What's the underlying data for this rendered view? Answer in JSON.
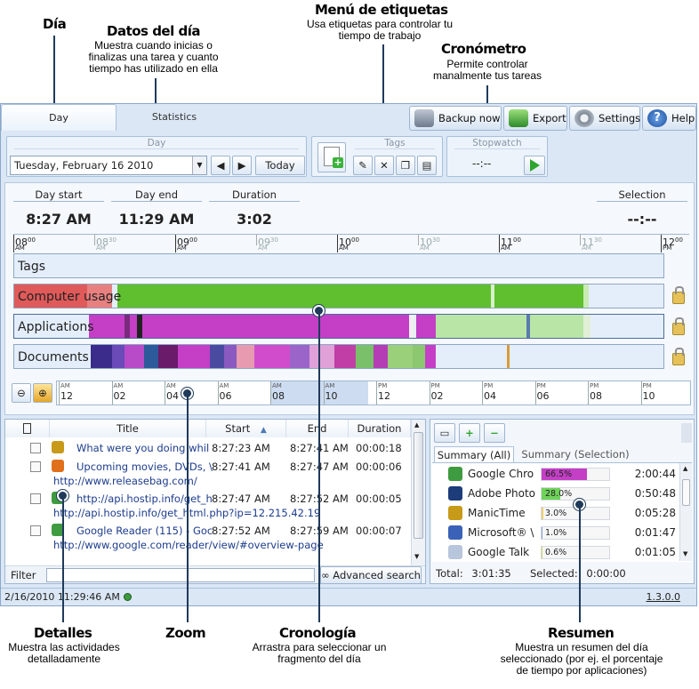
{
  "annotations": {
    "dia": {
      "title": "Día"
    },
    "datos": {
      "title": "Datos del día",
      "desc": "Muestra cuando inicias o finalizas una tarea y cuanto tiempo has utilizado en ella"
    },
    "menu": {
      "title": "Menú de etiquetas",
      "desc": "Usa etiquetas para controlar tu tiempo de trabajo"
    },
    "crono": {
      "title": "Cronómetro",
      "desc": "Permite controlar manalmente tus tareas"
    },
    "detalles": {
      "title": "Detalles",
      "desc": "Muestra las actividades detalladamente"
    },
    "zoom": {
      "title": "Zoom"
    },
    "cronologia": {
      "title": "Cronología",
      "desc": "Arrastra para seleccionar un fragmento del día"
    },
    "resumen": {
      "title": "Resumen",
      "desc": "Muestra un resumen del día seleccionado (por ej. el porcentaje de tiempo por aplicaciones)"
    }
  },
  "tabs": {
    "day": "Day",
    "statistics": "Statistics"
  },
  "toolbar": {
    "backup": "Backup now",
    "export": "Export",
    "settings": "Settings",
    "help": "Help"
  },
  "day_group": {
    "label": "Day",
    "date_value": "Tuesday, February 16 2010",
    "today": "Today"
  },
  "tags_group": {
    "label": "Tags"
  },
  "stopwatch_group": {
    "label": "Stopwatch",
    "value": "--:--"
  },
  "day_summary": {
    "start_label": "Day start",
    "start_value": "8:27 AM",
    "end_label": "Day end",
    "end_value": "11:29 AM",
    "duration_label": "Duration",
    "duration_value": "3:02",
    "selection_label": "Selection",
    "selection_value": "--:--"
  },
  "ruler": {
    "ticks": [
      {
        "h": "08",
        "m": "00",
        "sfx": "AM",
        "major": true
      },
      {
        "h": "08",
        "m": "30",
        "sfx": "AM",
        "major": false
      },
      {
        "h": "09",
        "m": "00",
        "sfx": "AM",
        "major": true
      },
      {
        "h": "09",
        "m": "30",
        "sfx": "AM",
        "major": false
      },
      {
        "h": "10",
        "m": "00",
        "sfx": "AM",
        "major": true
      },
      {
        "h": "10",
        "m": "30",
        "sfx": "AM",
        "major": false
      },
      {
        "h": "11",
        "m": "00",
        "sfx": "AM",
        "major": true
      },
      {
        "h": "11",
        "m": "30",
        "sfx": "AM",
        "major": false
      },
      {
        "h": "12",
        "m": "00",
        "sfx": "PM",
        "major": true
      }
    ]
  },
  "timeline_rows": {
    "tags": "Tags",
    "computer_usage": "Computer usage",
    "applications": "Applications",
    "documents": "Documents"
  },
  "zoom_ruler": {
    "ticks": [
      {
        "sfx": "AM",
        "h": "12"
      },
      {
        "sfx": "AM",
        "h": "02"
      },
      {
        "sfx": "AM",
        "h": "04"
      },
      {
        "sfx": "AM",
        "h": "06"
      },
      {
        "sfx": "AM",
        "h": "08"
      },
      {
        "sfx": "AM",
        "h": "10"
      },
      {
        "sfx": "PM",
        "h": "12"
      },
      {
        "sfx": "PM",
        "h": "02"
      },
      {
        "sfx": "PM",
        "h": "04"
      },
      {
        "sfx": "PM",
        "h": "06"
      },
      {
        "sfx": "PM",
        "h": "08"
      },
      {
        "sfx": "PM",
        "h": "10"
      }
    ]
  },
  "details": {
    "columns": {
      "title": "Title",
      "start": "Start",
      "end": "End",
      "duration": "Duration"
    },
    "rows": [
      {
        "icon": "manictime-icon",
        "color": "#c89a1a",
        "title": "What were you doing whil",
        "start": "8:27:23 AM",
        "end": "8:27:41 AM",
        "duration": "00:00:18",
        "sub": ""
      },
      {
        "icon": "firefox-icon",
        "color": "#e0701c",
        "title": "Upcoming movies, DVDs, \\",
        "start": "8:27:41 AM",
        "end": "8:27:47 AM",
        "duration": "00:00:06",
        "sub": "http://www.releasebag.com/"
      },
      {
        "icon": "chrome-icon",
        "color": "#3f9b3f",
        "title": "http://api.hostip.info/get_h",
        "start": "8:27:47 AM",
        "end": "8:27:52 AM",
        "duration": "00:00:05",
        "sub": "http://api.hostip.info/get_html.php?ip=12.215.42.19"
      },
      {
        "icon": "chrome-icon",
        "color": "#3f9b3f",
        "title": "Google Reader (115) - Goc",
        "start": "8:27:52 AM",
        "end": "8:27:59 AM",
        "duration": "00:00:07",
        "sub": "http://www.google.com/reader/view/#overview-page"
      }
    ],
    "filter_label": "Filter",
    "advanced_search": "Advanced search"
  },
  "summary": {
    "tab_all": "Summary (All)",
    "tab_selection": "Summary (Selection)",
    "rows": [
      {
        "icon": "chrome-icon",
        "name": "Google Chro",
        "pct": "66.5%",
        "frac": 0.665,
        "color": "#c43fc6",
        "time": "2:00:44"
      },
      {
        "icon": "photoshop-icon",
        "name": "Adobe Photo",
        "pct": "28.0%",
        "frac": 0.28,
        "color": "#6fd35a",
        "time": "0:50:48"
      },
      {
        "icon": "manictime-icon",
        "name": "ManicTime",
        "pct": "3.0%",
        "frac": 0.03,
        "color": "#f0d070",
        "time": "0:05:28"
      },
      {
        "icon": "word-icon",
        "name": "Microsoft® \\",
        "pct": "1.0%",
        "frac": 0.01,
        "color": "#8aa0d8",
        "time": "0:01:47"
      },
      {
        "icon": "gtalk-icon",
        "name": "Google Talk",
        "pct": "0.6%",
        "frac": 0.006,
        "color": "#c9d86a",
        "time": "0:01:05"
      }
    ],
    "total_label": "Total:",
    "total_value": "3:01:35",
    "selected_label": "Selected:",
    "selected_value": "0:00:00"
  },
  "statusbar": {
    "datetime": "2/16/2010 11:29:46 AM",
    "version": "1.3.0.0"
  }
}
